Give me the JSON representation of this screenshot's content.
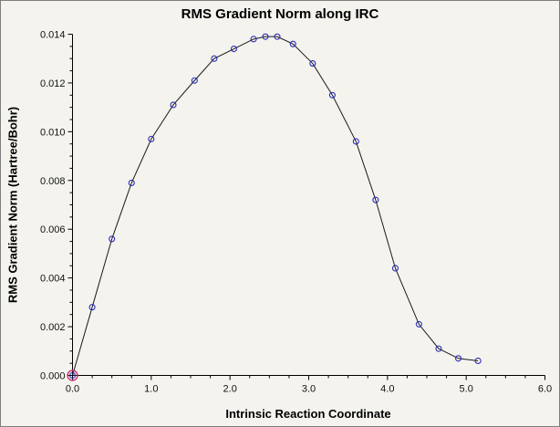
{
  "window": {
    "background": "#f4f3ee",
    "border_color": "#7f7f7f"
  },
  "chart_data": {
    "type": "line",
    "title": "RMS Gradient Norm along IRC",
    "xlabel": "Intrinsic Reaction Coordinate",
    "ylabel": "RMS Gradient Norm (Hartree/Bohr)",
    "xlim": [
      0.0,
      6.0
    ],
    "ylim": [
      0.0,
      0.014
    ],
    "grid": false,
    "legend_position": "none",
    "x_major_ticks": [
      0.0,
      1.0,
      2.0,
      3.0,
      4.0,
      5.0,
      6.0
    ],
    "x_tick_labels": [
      "0.0",
      "1.0",
      "2.0",
      "3.0",
      "4.0",
      "5.0",
      "6.0"
    ],
    "y_major_ticks": [
      0.0,
      0.002,
      0.004,
      0.006,
      0.008,
      0.01,
      0.012,
      0.014
    ],
    "y_tick_labels": [
      "0.000",
      "0.002",
      "0.004",
      "0.006",
      "0.008",
      "0.010",
      "0.012",
      "0.014"
    ],
    "x_minor_step": 0.25,
    "y_minor_step": 0.0005,
    "line_color": "#1a1a1a",
    "marker_color": "#2b2bb4",
    "highlight_color": "#c8396e",
    "series": [
      {
        "name": "RMS Gradient Norm",
        "x": [
          0.0,
          0.25,
          0.5,
          0.75,
          1.0,
          1.28,
          1.55,
          1.8,
          2.05,
          2.3,
          2.45,
          2.6,
          2.8,
          3.05,
          3.3,
          3.6,
          3.85,
          4.1,
          4.4,
          4.65,
          4.9,
          5.15
        ],
        "y": [
          0.0,
          0.0028,
          0.0056,
          0.0079,
          0.0097,
          0.0111,
          0.0121,
          0.013,
          0.0134,
          0.0138,
          0.0139,
          0.0139,
          0.0136,
          0.0128,
          0.0115,
          0.0096,
          0.0072,
          0.0044,
          0.0021,
          0.0011,
          0.0007,
          0.0006
        ]
      }
    ],
    "highlight_point": {
      "x": 0.0,
      "y": 0.0
    }
  }
}
